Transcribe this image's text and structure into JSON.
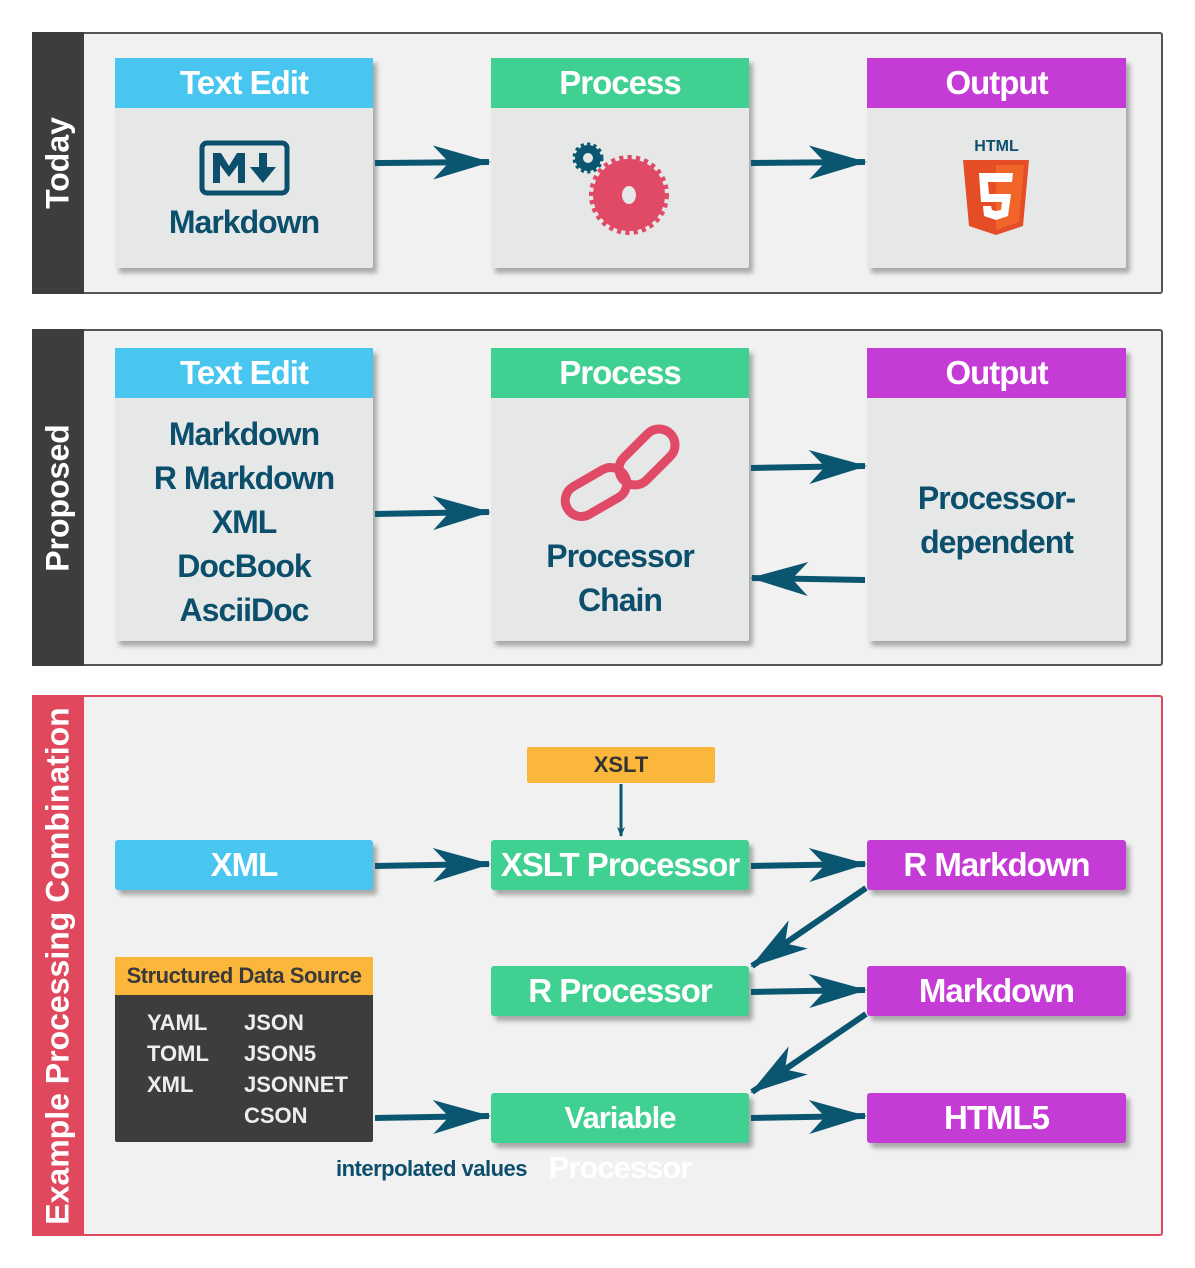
{
  "today": {
    "label": "Today",
    "text_edit": "Text Edit",
    "process": "Process",
    "output": "Output",
    "markdown": "Markdown",
    "html_icon_label": "HTML",
    "icons": [
      "markdown-icon",
      "gears-icon",
      "html5-icon"
    ]
  },
  "proposed": {
    "label": "Proposed",
    "text_edit": "Text Edit",
    "process": "Process",
    "output": "Output",
    "formats": [
      "Markdown",
      "R Markdown",
      "XML",
      "DocBook",
      "AsciiDoc"
    ],
    "processor": [
      "Processor",
      "Chain"
    ],
    "output_text": [
      "Processor-",
      "dependent"
    ],
    "icons": [
      "chain-link-icon"
    ]
  },
  "example": {
    "label": "Example Processing Combination",
    "xslt": "XSLT",
    "xml": "XML",
    "xslt_processor": "XSLT Processor",
    "r_markdown": "R Markdown",
    "r_processor": "R Processor",
    "markdown": "Markdown",
    "variable_processor": "Variable Processor",
    "html5": "HTML5",
    "structured": {
      "title": "Structured Data Source",
      "col1": [
        "YAML",
        "TOML",
        "XML"
      ],
      "col2": [
        "JSON",
        "JSON5",
        "JSONNET",
        "CSON"
      ]
    },
    "interpolated": "interpolated values"
  },
  "colors": {
    "edit": "#48c6f0",
    "process": "#40d091",
    "output": "#c43bd6",
    "source": "#fbb73b",
    "arrow": "#0a5570",
    "example_border": "#e0485e"
  }
}
